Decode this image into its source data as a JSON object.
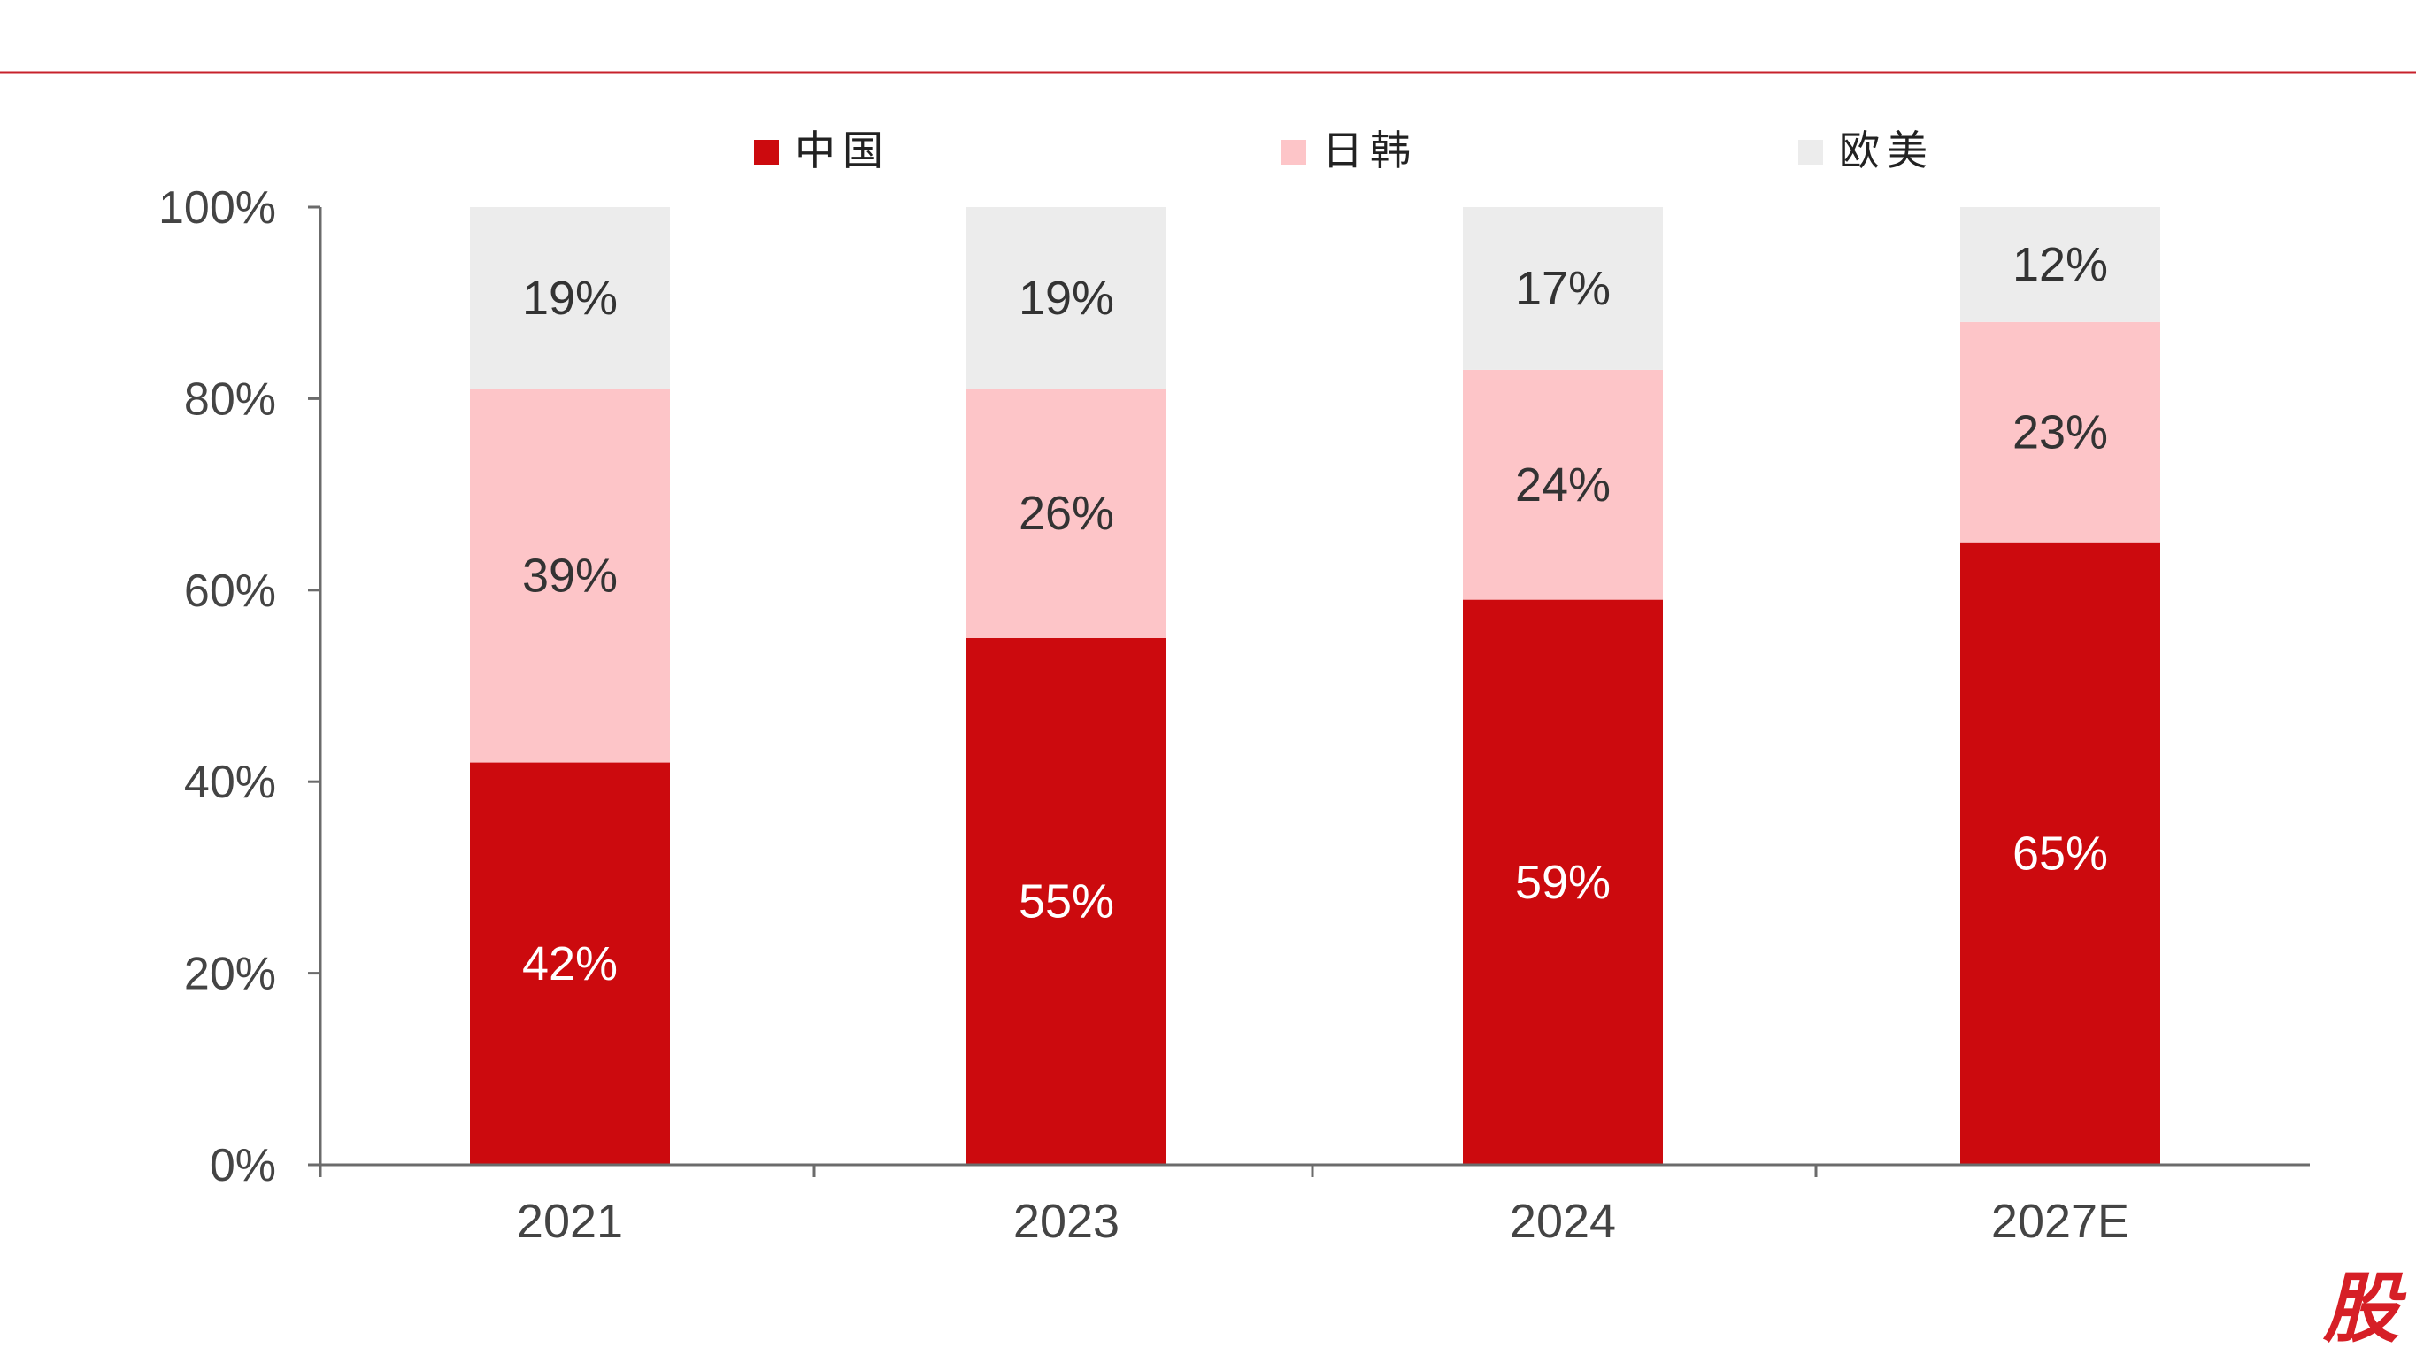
{
  "chart_data": {
    "type": "bar",
    "stacked": true,
    "title": "",
    "xlabel": "",
    "ylabel": "",
    "ylim": [
      0,
      100
    ],
    "y_ticks": [
      "0%",
      "20%",
      "40%",
      "60%",
      "80%",
      "100%"
    ],
    "y_tick_values": [
      0,
      20,
      40,
      60,
      80,
      100
    ],
    "categories": [
      "2021",
      "2023",
      "2024",
      "2027E"
    ],
    "series": [
      {
        "name": "中国",
        "values": [
          42,
          55,
          59,
          65
        ],
        "labels": [
          "42%",
          "55%",
          "59%",
          "65%"
        ],
        "color": "#cc0a0e",
        "label_color": "#ffffff"
      },
      {
        "name": "日韩",
        "values": [
          39,
          26,
          24,
          23
        ],
        "labels": [
          "39%",
          "26%",
          "24%",
          "23%"
        ],
        "color": "#fdc5c8",
        "label_color": "#333333"
      },
      {
        "name": "欧美",
        "values": [
          19,
          19,
          17,
          12
        ],
        "labels": [
          "19%",
          "19%",
          "17%",
          "12%"
        ],
        "color": "#ececec",
        "label_color": "#333333"
      }
    ],
    "legend_position": "top",
    "grid": false
  },
  "colors": {
    "header_rule": "#c7212b",
    "axis": "#6b6b6b",
    "tick_text": "#444444",
    "watermark": "#d61f26"
  },
  "watermark": {
    "text": "股"
  }
}
